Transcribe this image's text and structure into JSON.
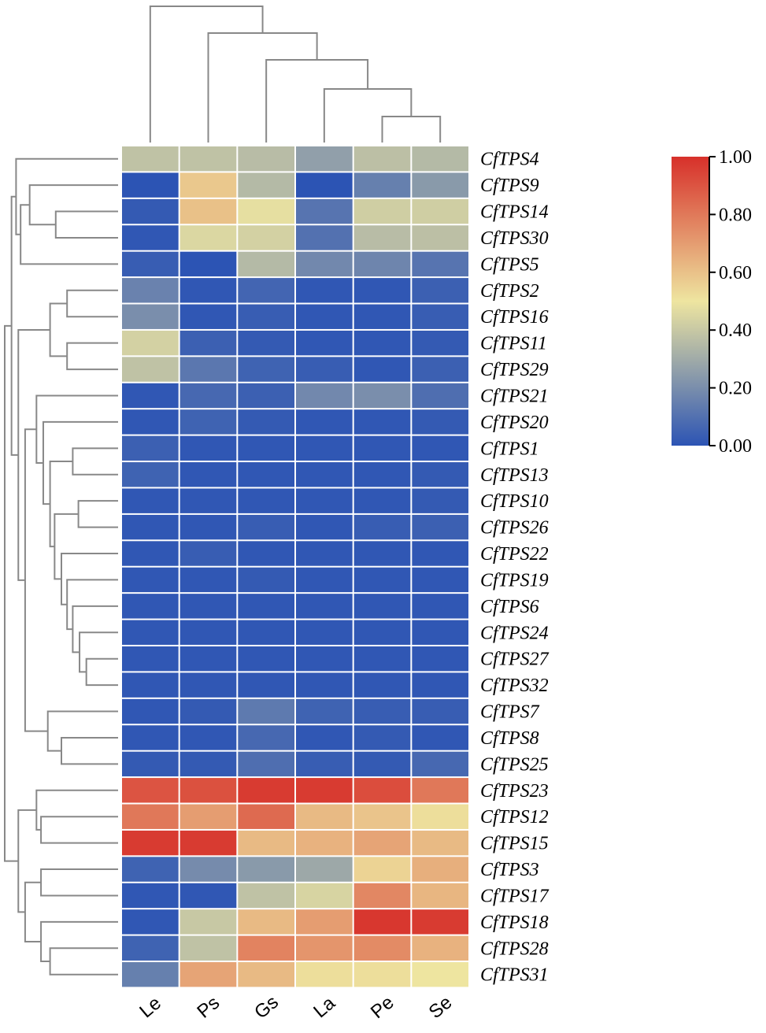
{
  "chart_data": {
    "type": "heatmap",
    "title": "",
    "columns": [
      "Le",
      "Ps",
      "Gs",
      "La",
      "Pe",
      "Se"
    ],
    "rows": [
      "CfTPS4",
      "CfTPS9",
      "CfTPS14",
      "CfTPS30",
      "CfTPS5",
      "CfTPS2",
      "CfTPS16",
      "CfTPS11",
      "CfTPS29",
      "CfTPS21",
      "CfTPS20",
      "CfTPS1",
      "CfTPS13",
      "CfTPS10",
      "CfTPS26",
      "CfTPS22",
      "CfTPS19",
      "CfTPS6",
      "CfTPS24",
      "CfTPS27",
      "CfTPS32",
      "CfTPS7",
      "CfTPS8",
      "CfTPS25",
      "CfTPS23",
      "CfTPS12",
      "CfTPS15",
      "CfTPS3",
      "CfTPS17",
      "CfTPS18",
      "CfTPS28",
      "CfTPS31"
    ],
    "values": [
      [
        0.38,
        0.38,
        0.36,
        0.26,
        0.37,
        0.35
      ],
      [
        0.0,
        0.58,
        0.35,
        0.0,
        0.15,
        0.24
      ],
      [
        0.02,
        0.6,
        0.48,
        0.11,
        0.42,
        0.42
      ],
      [
        0.01,
        0.45,
        0.43,
        0.1,
        0.36,
        0.37
      ],
      [
        0.03,
        0.0,
        0.35,
        0.18,
        0.17,
        0.11
      ],
      [
        0.16,
        0.01,
        0.06,
        0.01,
        0.01,
        0.04
      ],
      [
        0.2,
        0.01,
        0.03,
        0.01,
        0.01,
        0.03
      ],
      [
        0.43,
        0.04,
        0.02,
        0.01,
        0.01,
        0.02
      ],
      [
        0.38,
        0.12,
        0.05,
        0.03,
        0.01,
        0.04
      ],
      [
        0.01,
        0.07,
        0.04,
        0.18,
        0.2,
        0.09
      ],
      [
        0.01,
        0.05,
        0.02,
        0.01,
        0.01,
        0.02
      ],
      [
        0.04,
        0.01,
        0.01,
        0.01,
        0.01,
        0.01
      ],
      [
        0.05,
        0.01,
        0.01,
        0.01,
        0.01,
        0.02
      ],
      [
        0.01,
        0.01,
        0.01,
        0.01,
        0.01,
        0.02
      ],
      [
        0.01,
        0.01,
        0.03,
        0.01,
        0.03,
        0.04
      ],
      [
        0.01,
        0.03,
        0.01,
        0.01,
        0.01,
        0.01
      ],
      [
        0.01,
        0.01,
        0.02,
        0.01,
        0.01,
        0.01
      ],
      [
        0.01,
        0.01,
        0.01,
        0.01,
        0.01,
        0.01
      ],
      [
        0.01,
        0.01,
        0.01,
        0.01,
        0.01,
        0.01
      ],
      [
        0.01,
        0.01,
        0.01,
        0.01,
        0.01,
        0.01
      ],
      [
        0.01,
        0.01,
        0.01,
        0.01,
        0.01,
        0.01
      ],
      [
        0.01,
        0.02,
        0.13,
        0.05,
        0.03,
        0.03
      ],
      [
        0.01,
        0.01,
        0.07,
        0.01,
        0.02,
        0.01
      ],
      [
        0.02,
        0.02,
        0.09,
        0.03,
        0.02,
        0.07
      ],
      [
        0.9,
        0.91,
        0.97,
        0.97,
        0.92,
        0.8
      ],
      [
        0.8,
        0.7,
        0.84,
        0.62,
        0.59,
        0.52
      ],
      [
        0.97,
        0.97,
        0.62,
        0.64,
        0.68,
        0.62
      ],
      [
        0.05,
        0.19,
        0.24,
        0.29,
        0.55,
        0.65
      ],
      [
        0.01,
        0.01,
        0.38,
        0.44,
        0.76,
        0.63
      ],
      [
        0.01,
        0.4,
        0.62,
        0.7,
        0.98,
        0.97
      ],
      [
        0.05,
        0.38,
        0.77,
        0.72,
        0.75,
        0.64
      ],
      [
        0.15,
        0.68,
        0.62,
        0.52,
        0.52,
        0.5
      ]
    ],
    "colorbar": {
      "min": 0.0,
      "max": 1.0,
      "ticks": [
        0.0,
        0.2,
        0.4,
        0.6,
        0.8,
        1.0
      ],
      "tick_labels": [
        "0.00",
        "0.20",
        "0.40",
        "0.60",
        "0.80",
        "1.00"
      ],
      "colormap": [
        "#2c54b4",
        "#eee5a0",
        "#d7302a"
      ]
    },
    "row_dendrogram": true,
    "column_dendrogram": true,
    "colors": {
      "dendrogram": "#888888",
      "grid": "#ffffff"
    }
  }
}
